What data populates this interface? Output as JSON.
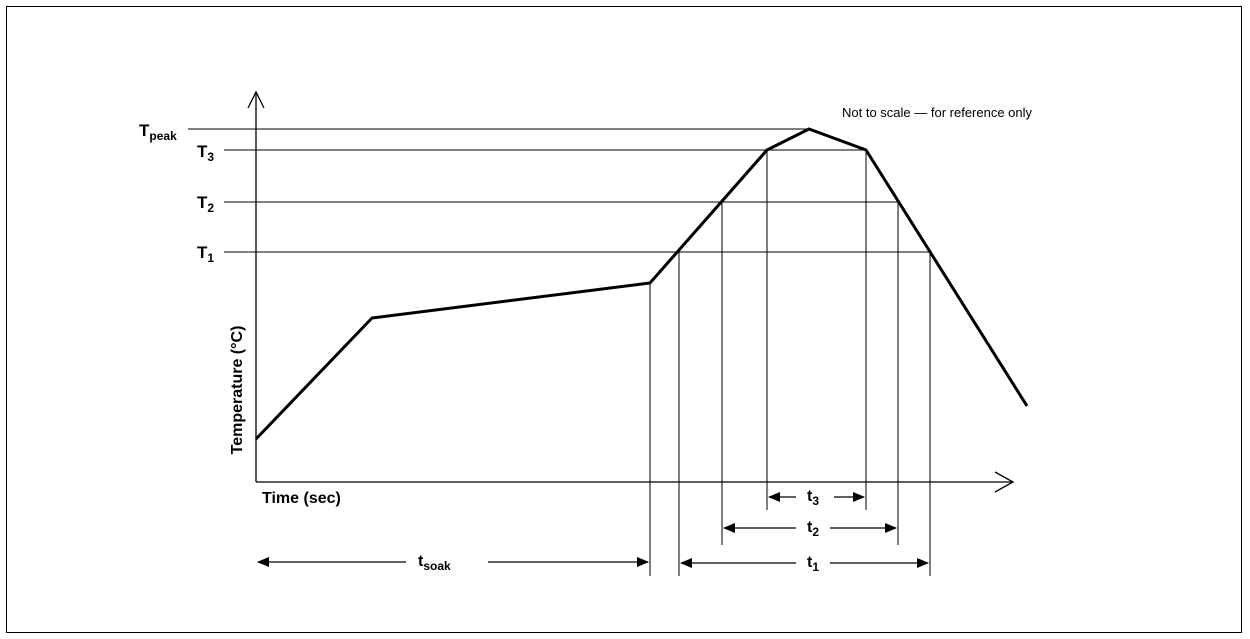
{
  "diagram": {
    "note": "Not to scale — for reference only",
    "y_axis_label": "Temperature (°C)",
    "x_axis_label": "Time (sec)",
    "levels": [
      {
        "main": "T",
        "sub": "peak"
      },
      {
        "main": "T",
        "sub": "3"
      },
      {
        "main": "T",
        "sub": "2"
      },
      {
        "main": "T",
        "sub": "1"
      }
    ],
    "intervals": [
      {
        "main": "t",
        "sub": "soak"
      },
      {
        "main": "t",
        "sub": "3"
      },
      {
        "main": "t",
        "sub": "2"
      },
      {
        "main": "t",
        "sub": "1"
      }
    ],
    "colors": {
      "ink": "#000000",
      "background": "#ffffff"
    }
  }
}
